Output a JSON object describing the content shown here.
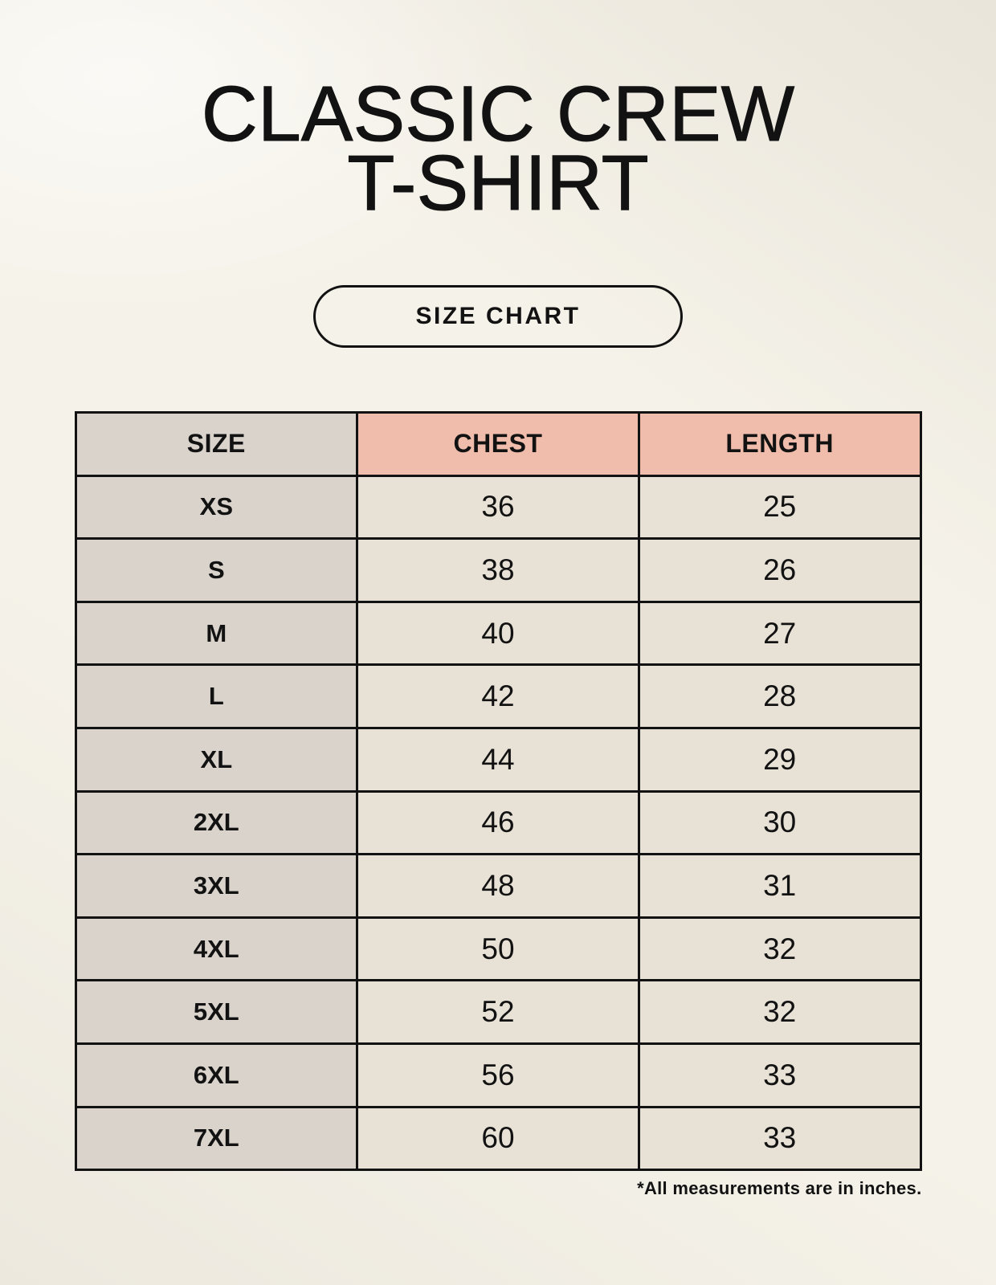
{
  "header": {
    "title_line1": "CLASSIC CREW",
    "title_line2": "T-SHIRT",
    "button_label": "SIZE CHART"
  },
  "footer": {
    "footnote": "*All measurements are in inches."
  },
  "colors": {
    "background": "#f5f2e9",
    "border": "#121212",
    "text": "#121212",
    "size_col_bg": "#d9d3cc",
    "measure_header_bg": "#f0bcab",
    "cell_bg": "#e8e2d6"
  },
  "chart_data": {
    "type": "table",
    "title": "CLASSIC CREW T-SHIRT",
    "subtitle": "SIZE CHART",
    "units": "inches",
    "columns": [
      "SIZE",
      "CHEST",
      "LENGTH"
    ],
    "rows": [
      [
        "XS",
        36,
        25
      ],
      [
        "S",
        38,
        26
      ],
      [
        "M",
        40,
        27
      ],
      [
        "L",
        42,
        28
      ],
      [
        "XL",
        44,
        29
      ],
      [
        "2XL",
        46,
        30
      ],
      [
        "3XL",
        48,
        31
      ],
      [
        "4XL",
        50,
        32
      ],
      [
        "5XL",
        52,
        32
      ],
      [
        "6XL",
        56,
        33
      ],
      [
        "7XL",
        60,
        33
      ]
    ]
  }
}
